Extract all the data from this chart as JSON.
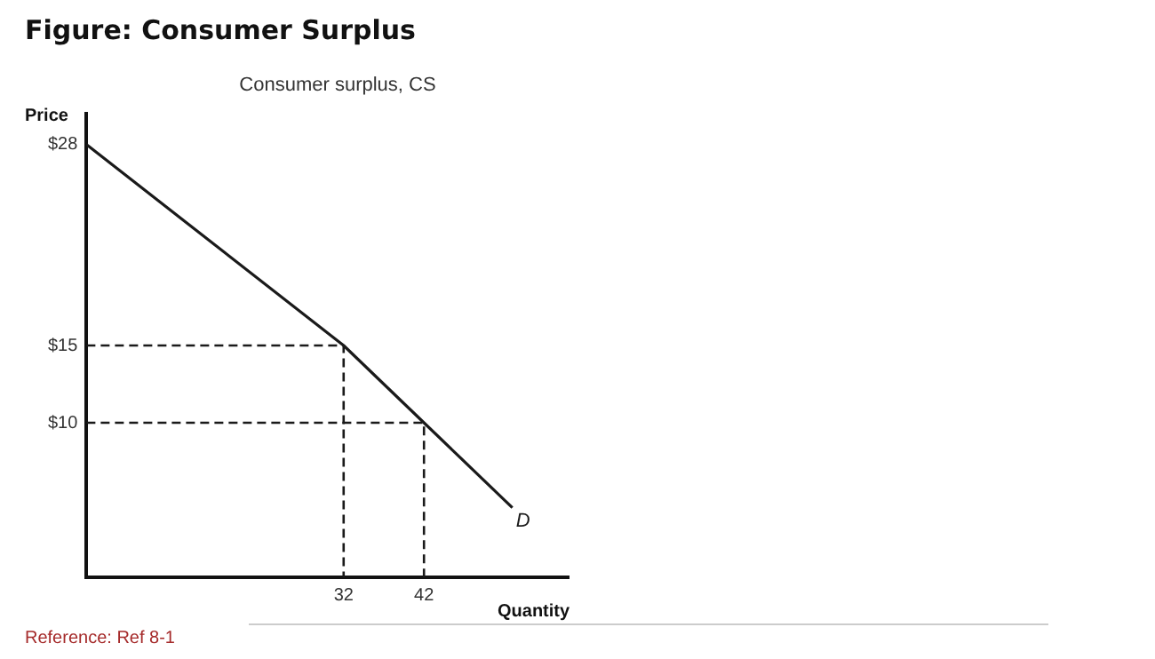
{
  "chart_data": {
    "type": "line",
    "title": "Figure: Consumer Surplus",
    "subtitle": "Consumer surplus, CS",
    "xlabel": "Quantity",
    "ylabel": "Price",
    "xlim": [
      0,
      60
    ],
    "xticks": [
      32,
      42
    ],
    "ylim": [
      0,
      30
    ],
    "yticks": [
      {
        "value": 10,
        "label": "$10"
      },
      {
        "value": 15,
        "label": "$15"
      },
      {
        "value": 28,
        "label": "$28"
      }
    ],
    "series": [
      {
        "name": "D",
        "color": "#1a1a1a",
        "x": [
          0,
          32,
          42,
          53
        ],
        "values": [
          28,
          15,
          10,
          4.5
        ]
      },
      {
        "color": "#1a1a1a",
        "line_style": "dashed",
        "x": [
          0,
          32,
          32
        ],
        "values": [
          15,
          15,
          0
        ]
      },
      {
        "color": "#1a1a1a",
        "line_style": "dashed",
        "x": [
          0,
          42,
          42
        ],
        "values": [
          10,
          10,
          0
        ]
      }
    ],
    "annotations": [
      "Reference: Ref 8-1"
    ],
    "grid": false,
    "legend": false,
    "marker": "none"
  }
}
